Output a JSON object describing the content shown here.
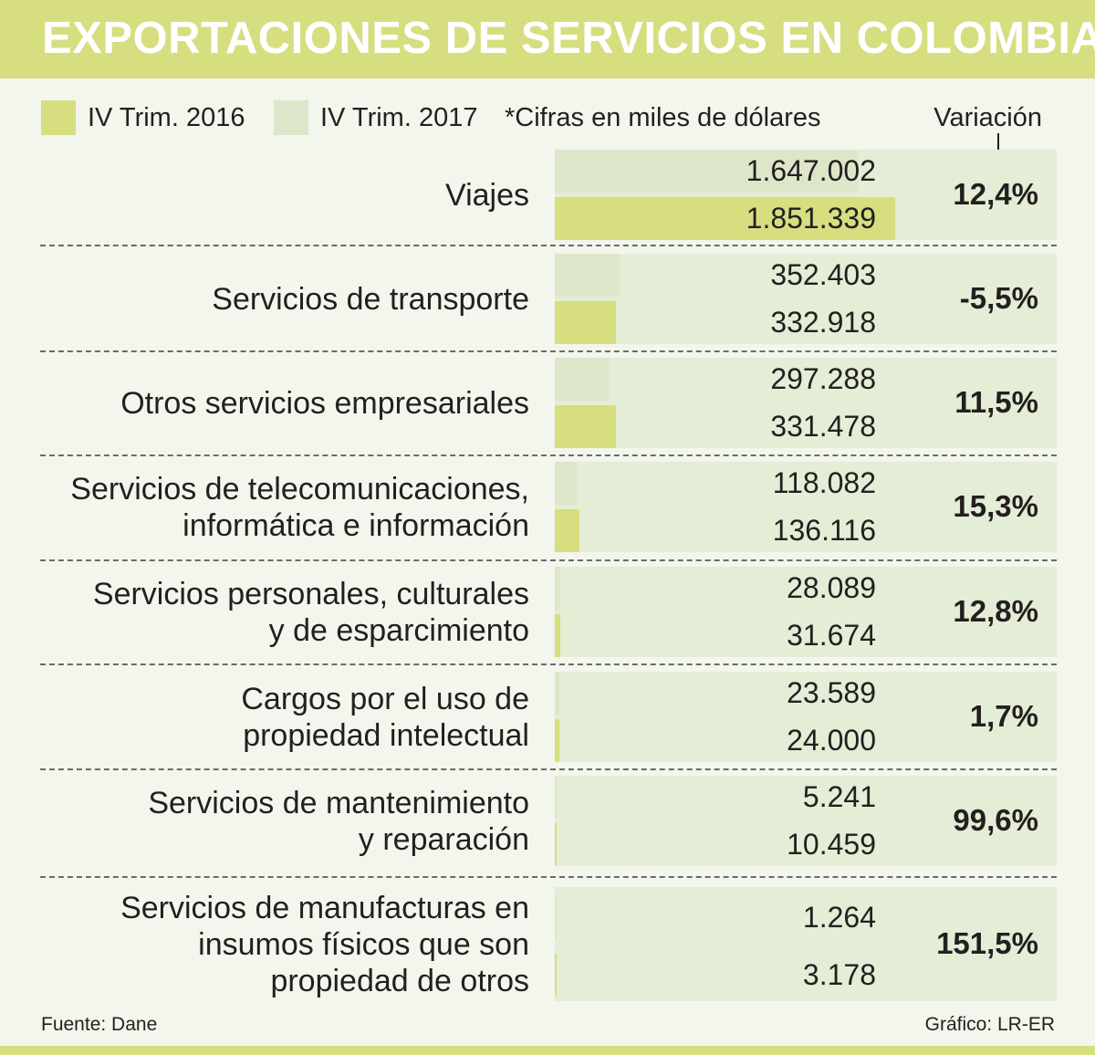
{
  "title": "EXPORTACIONES DE SERVICIOS EN COLOMBIA",
  "legend": {
    "series_a": "IV Trim. 2016",
    "series_b": "IV Trim. 2017",
    "note": "*Cifras en miles de dólares",
    "variation_header": "Variación"
  },
  "footer": {
    "source": "Fuente: Dane",
    "credit": "Gráfico: LR-ER"
  },
  "colors": {
    "accent": "#d7de80",
    "bar_light": "#dde6c9",
    "panel": "#e4edd5",
    "background": "#f2f6ec"
  },
  "chart_data": {
    "type": "bar",
    "orientation": "horizontal",
    "unit": "miles de dólares",
    "xlim": [
      0,
      1851339
    ],
    "categories": [
      [
        "Viajes"
      ],
      [
        "Servicios de transporte"
      ],
      [
        "Otros servicios empresariales"
      ],
      [
        "Servicios de telecomunicaciones,",
        "informática e información"
      ],
      [
        "Servicios personales, culturales",
        "y de esparcimiento"
      ],
      [
        "Cargos por el uso de",
        "propiedad intelectual"
      ],
      [
        "Servicios de mantenimiento",
        "y reparación"
      ],
      [
        "Servicios de manufacturas en",
        "insumos físicos que son",
        "propiedad de otros"
      ]
    ],
    "series": [
      {
        "name": "IV Trim. 2016",
        "values": [
          1647002,
          352403,
          297288,
          118082,
          28089,
          23589,
          5241,
          1264
        ],
        "labels": [
          "1.647.002",
          "352.403",
          "297.288",
          "118.082",
          "28.089",
          "23.589",
          "5.241",
          "1.264"
        ]
      },
      {
        "name": "IV Trim. 2017",
        "values": [
          1851339,
          332918,
          331478,
          136116,
          31674,
          24000,
          10459,
          3178
        ],
        "labels": [
          "1.851.339",
          "332.918",
          "331.478",
          "136.116",
          "31.674",
          "24.000",
          "10.459",
          "3.178"
        ]
      }
    ],
    "variation": [
      "12,4%",
      "-5,5%",
      "11,5%",
      "15,3%",
      "12,8%",
      "1,7%",
      "99,6%",
      "151,5%"
    ]
  }
}
